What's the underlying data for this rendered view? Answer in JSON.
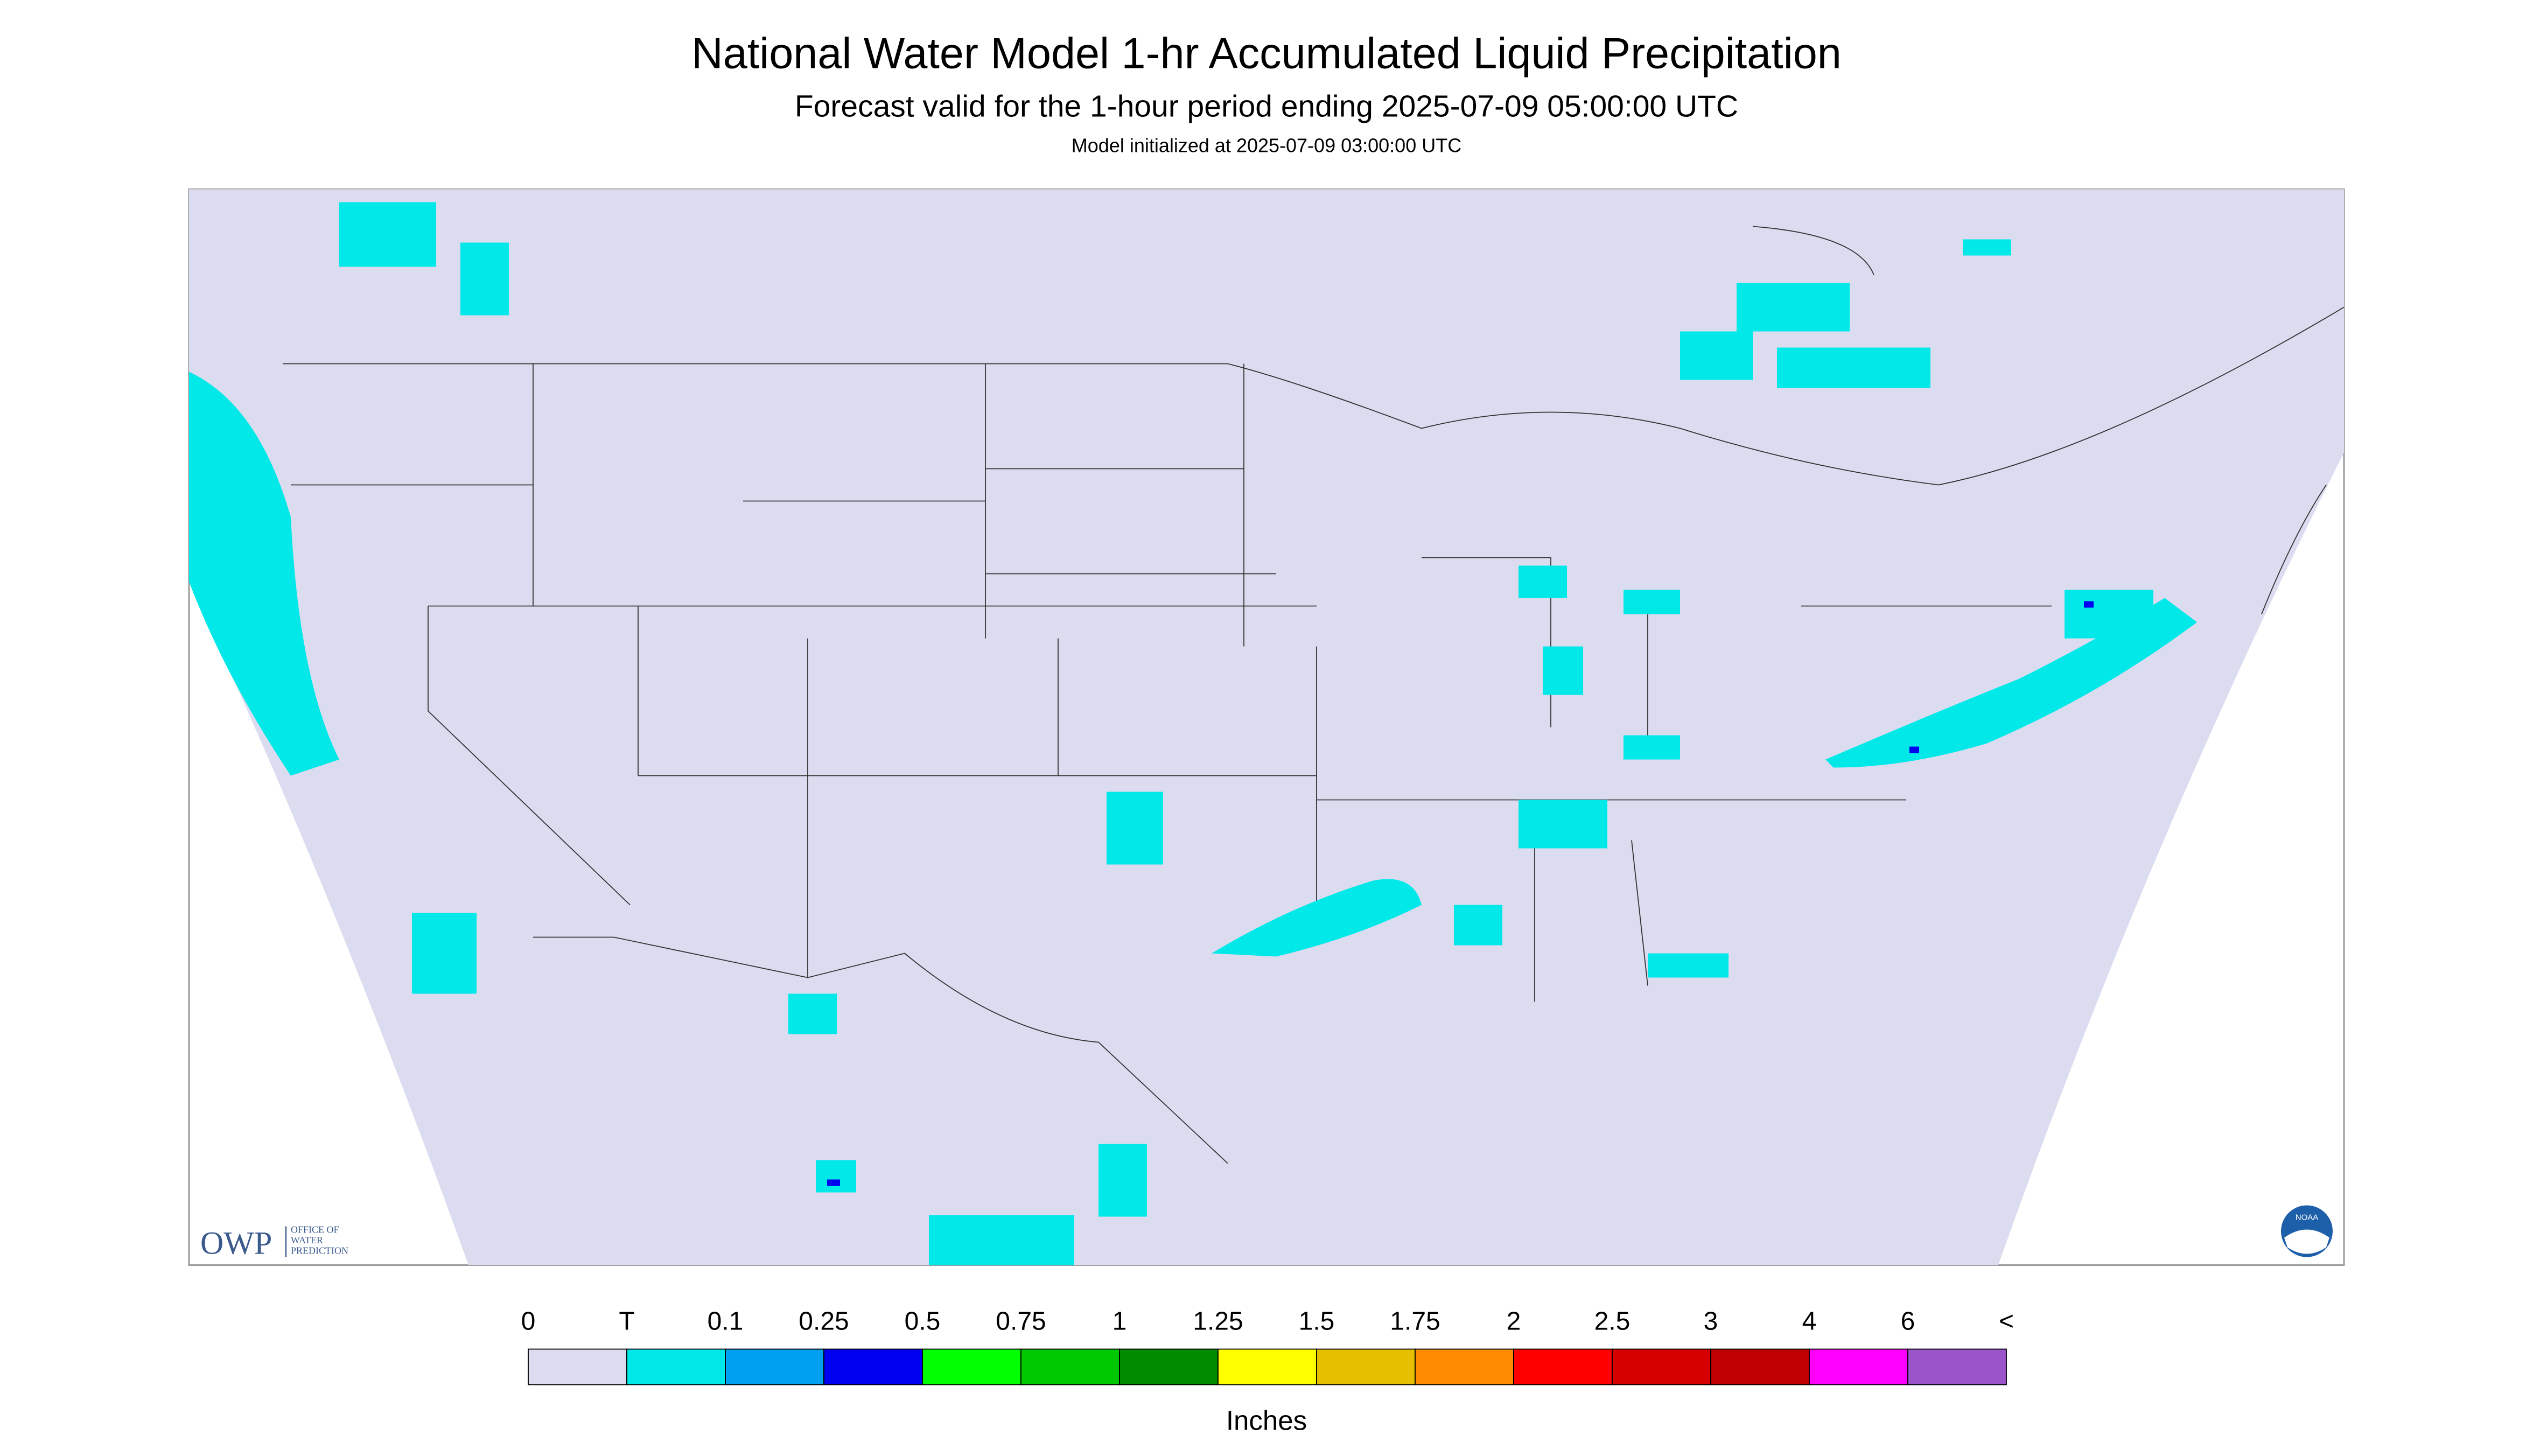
{
  "header": {
    "title": "National Water Model 1-hr Accumulated Liquid Precipitation",
    "subtitle": "Forecast valid for the 1-hour period ending 2025-07-09 05:00:00 UTC",
    "note": "Model initialized at 2025-07-09 03:00:00 UTC"
  },
  "logos": {
    "owp": "OWP",
    "owp_lines": [
      "OFFICE OF",
      "WATER",
      "PREDICTION"
    ],
    "noaa": "NOAA"
  },
  "legend": {
    "labels": [
      "0",
      "T",
      "0.1",
      "0.25",
      "0.5",
      "0.75",
      "1",
      "1.25",
      "1.5",
      "1.75",
      "2",
      "2.5",
      "3",
      "4",
      "6",
      "<"
    ],
    "colors": [
      "#dcdcf0",
      "#00e8e8",
      "#00a0f0",
      "#0000f0",
      "#00ff00",
      "#00c800",
      "#008c00",
      "#ffff00",
      "#e6c000",
      "#ff8c00",
      "#ff0000",
      "#d60000",
      "#c00000",
      "#ff00ff",
      "#9955c9"
    ],
    "unit": "Inches"
  }
}
